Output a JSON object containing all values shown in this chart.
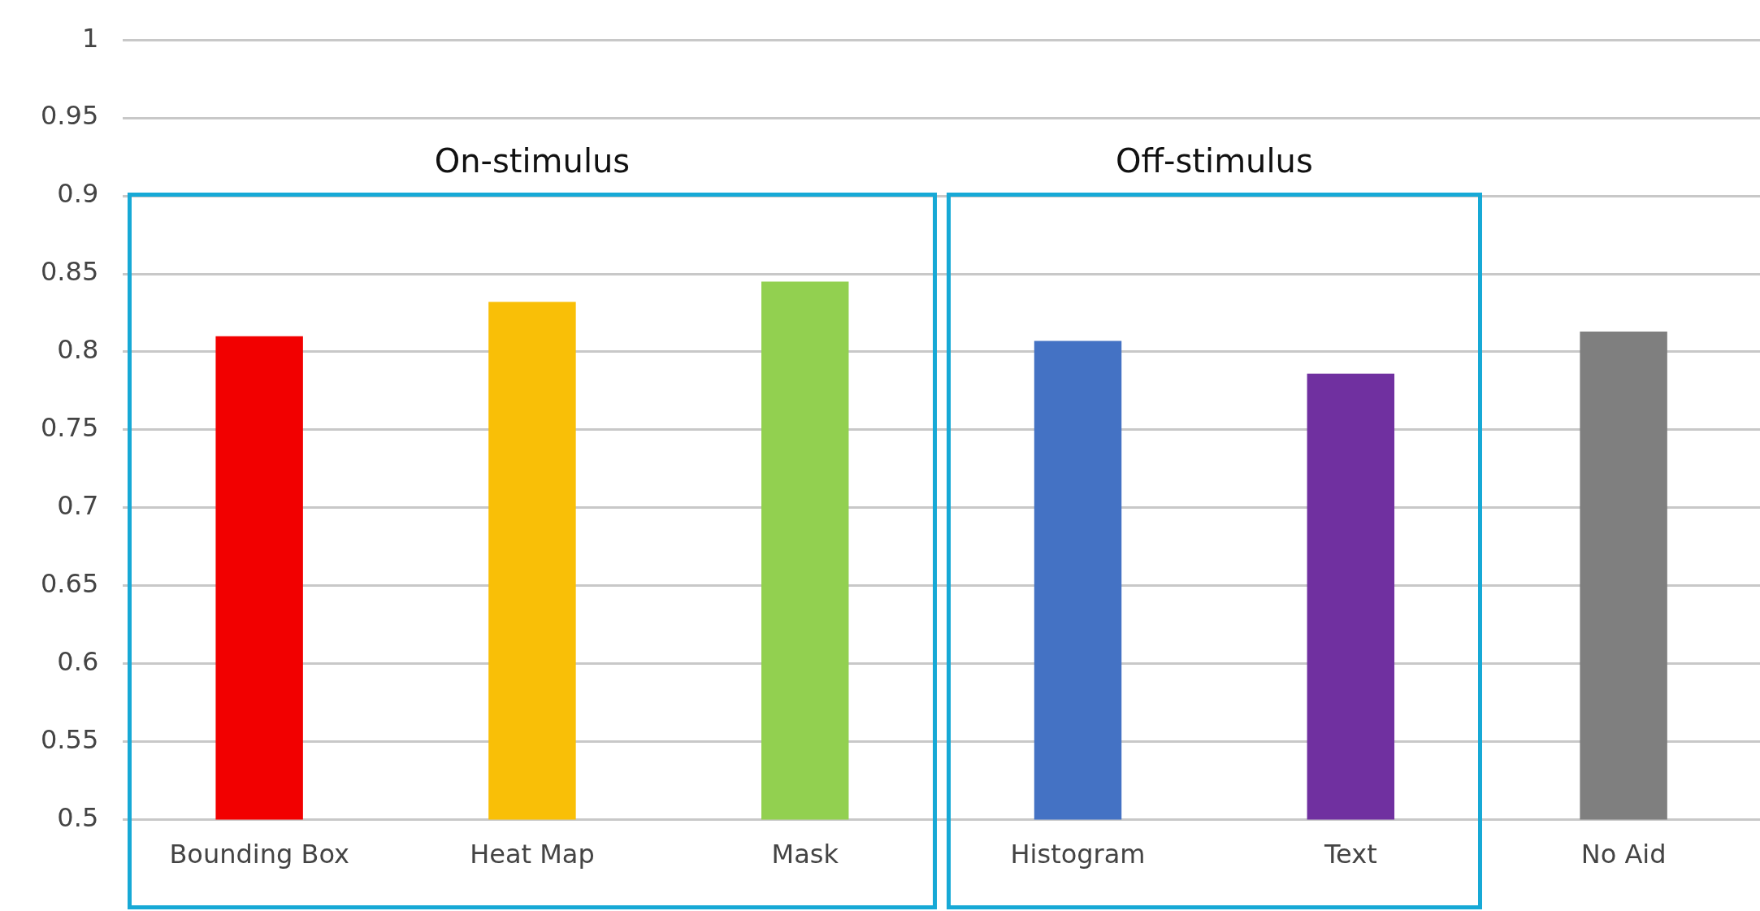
{
  "chart_data": {
    "type": "bar",
    "categories": [
      "Bounding Box",
      "Heat Map",
      "Mask",
      "Histogram",
      "Text",
      "No Aid"
    ],
    "values": [
      0.81,
      0.832,
      0.845,
      0.807,
      0.786,
      0.813
    ],
    "colors": [
      "#f20000",
      "#f9bf07",
      "#92d050",
      "#4472c4",
      "#7030a0",
      "#7f7f7f"
    ],
    "ylim": [
      0.5,
      1
    ],
    "yticks": [
      0.5,
      0.55,
      0.6,
      0.65,
      0.7,
      0.75,
      0.8,
      0.85,
      0.9,
      0.95,
      1
    ],
    "grid": "y",
    "legend": false,
    "annotations": [
      "On-stimulus",
      "Off-stimulus"
    ]
  }
}
